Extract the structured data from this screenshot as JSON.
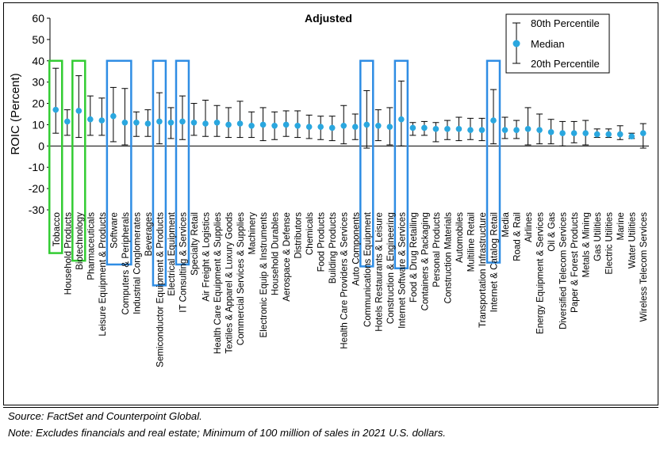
{
  "chart_data": {
    "type": "errorbar",
    "title": "Adjusted",
    "ylabel": "ROIC (Percent)",
    "ylim": [
      -30,
      60
    ],
    "yticks": [
      -30,
      -20,
      -10,
      0,
      10,
      20,
      30,
      40,
      50,
      60
    ],
    "legend": {
      "position": "top-right",
      "entries": [
        "80th Percentile",
        "Median",
        "20th Percentile"
      ]
    },
    "colors": {
      "median": "#2aa7df",
      "whisker": "#000000",
      "green_box": "#33cc33",
      "blue_box": "#2f8de4"
    },
    "categories": [
      "Tobacco",
      "Household Products",
      "Biotechnology",
      "Pharmaceuticals",
      "Leisure Equipment & Products",
      "Software",
      "Computers & Peripherals",
      "Industrial Conglomerates",
      "Beverages",
      "Semiconductor Equipment & Products",
      "Electrical Equipment",
      "IT Consulting & Services",
      "Specialty Retail",
      "Air Freight & Logistics",
      "Health Care Equipment & Supplies",
      "Textiles & Apparel & Luxury Goods",
      "Commercial Services & Supplies",
      "Machinery",
      "Electronic Equip & Instruments",
      "Household Durables",
      "Aerospace & Defense",
      "Distributors",
      "Chemicals",
      "Food Products",
      "Building Products",
      "Health Care Providers & Services",
      "Auto Components",
      "Communications Equipment",
      "Hotels Restaurants & Leisure",
      "Construction & Engineering",
      "Internet Software & Services",
      "Food & Drug Retailing",
      "Containers & Packaging",
      "Personal Products",
      "Construction Materials",
      "Automobiles",
      "Multiline Retail",
      "Transportation Infrastructure",
      "Internet & Catalog Retail",
      "Media",
      "Road & Rail",
      "Airlines",
      "Energy Equipment & Services",
      "Oil & Gas",
      "Diversified Telecom Services",
      "Paper & Forest Products",
      "Metals & Mining",
      "Gas Utilities",
      "Electric Utilities",
      "Marine",
      "Water Utilities",
      "Wireless Telecom Services"
    ],
    "median": [
      17,
      11.5,
      16.5,
      12.5,
      12,
      14,
      11,
      11,
      10.5,
      11.5,
      11,
      11.5,
      11,
      10.5,
      11,
      10,
      10.5,
      9.5,
      10,
      9.5,
      10,
      9.5,
      9,
      9,
      8.5,
      9.5,
      9,
      10,
      9.5,
      9,
      12.5,
      8.5,
      8.5,
      8,
      8,
      8,
      7.5,
      7.5,
      12,
      7.5,
      7.5,
      8,
      7.5,
      6.5,
      6,
      6,
      6,
      5.5,
      5.5,
      5.5,
      4.5,
      6
    ],
    "p80": [
      36.5,
      17,
      33,
      23.5,
      22.5,
      27.5,
      27,
      16,
      17,
      25,
      18,
      23.5,
      20,
      21.5,
      19,
      18,
      21,
      16,
      18,
      16,
      16.5,
      16.5,
      14.5,
      14,
      14,
      19,
      15,
      26,
      17,
      18,
      30.5,
      11,
      11.5,
      11,
      12,
      13.5,
      13,
      13,
      26.5,
      13.5,
      12,
      18,
      15,
      12.5,
      11.5,
      11.5,
      12,
      8,
      8,
      9.5,
      6,
      10.5
    ],
    "p20": [
      6,
      5,
      4,
      5,
      5,
      2,
      0.5,
      4.5,
      4.5,
      1,
      3.5,
      3,
      5,
      4.5,
      4.5,
      4,
      4,
      4,
      2.5,
      3,
      4.5,
      4,
      3.5,
      3,
      2.5,
      1,
      3,
      -1,
      2.5,
      0.5,
      0,
      5,
      5,
      2,
      3,
      2.5,
      3,
      2.5,
      1,
      3.5,
      3.5,
      0.5,
      1,
      1,
      0,
      1.5,
      0.5,
      4,
      4,
      3,
      3.5,
      -1
    ],
    "highlight_green": [
      {
        "from": "Tobacco",
        "to": "Tobacco",
        "label_len": 0.19
      },
      {
        "from": "Biotechnology",
        "to": "Biotechnology",
        "label_len": 0.23
      }
    ],
    "highlight_blue": [
      {
        "from": "Software",
        "to": "Computers & Peripherals",
        "label_len": 0.25
      },
      {
        "from": "Semiconductor Equipment & Products",
        "to": "Semiconductor Equipment & Products",
        "label_len": 0.36
      },
      {
        "from": "IT Consulting & Services",
        "to": "IT Consulting & Services",
        "label_len": 0.25
      },
      {
        "from": "Communications Equipment",
        "to": "Communications Equipment",
        "label_len": 0.26
      },
      {
        "from": "Internet Software & Services",
        "to": "Internet Software & Services",
        "label_len": 0.27
      },
      {
        "from": "Internet & Catalog Retail",
        "to": "Internet & Catalog Retail",
        "label_len": 0.24
      }
    ]
  },
  "notes": {
    "source": "Source: FactSet and Counterpoint Global.",
    "exclusions": "Note: Excludes financials and real estate; Minimum of 100 million of sales in 2021 U.S. dollars."
  }
}
